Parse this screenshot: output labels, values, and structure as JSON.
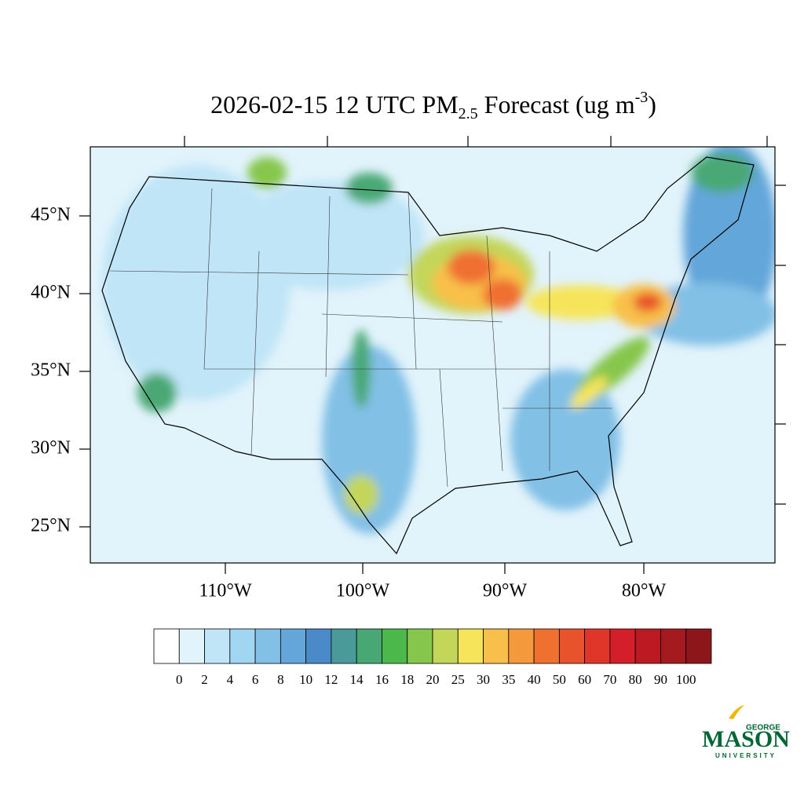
{
  "title": {
    "prefix": "2026-02-15 12 UTC PM",
    "subscript": "2.5",
    "middle": " Forecast (ug m",
    "superscript": "-3",
    "suffix": ")"
  },
  "lat_labels": [
    "45°N",
    "40°N",
    "35°N",
    "30°N",
    "25°N"
  ],
  "lon_labels": [
    "110°W",
    "100°W",
    "90°W",
    "80°W"
  ],
  "colorbar": {
    "levels": [
      0,
      2,
      4,
      6,
      8,
      10,
      12,
      14,
      16,
      18,
      20,
      25,
      30,
      35,
      40,
      50,
      60,
      70,
      80,
      90,
      100
    ],
    "colors": [
      "#ffffff",
      "#e1f3fb",
      "#bfe5f7",
      "#a0d6f2",
      "#82c0e6",
      "#64a6da",
      "#4a8ac8",
      "#4a9a9a",
      "#48a874",
      "#4cb84c",
      "#86c64c",
      "#c3d65a",
      "#f6e55a",
      "#f8c04a",
      "#f49a3c",
      "#f07030",
      "#e8522c",
      "#e0362a",
      "#d41e2a",
      "#bc1a22",
      "#a41a1e",
      "#8c161a"
    ]
  },
  "logo": {
    "top": "GEORGE",
    "main": "MASON",
    "bottom": "UNIVERSITY"
  }
}
